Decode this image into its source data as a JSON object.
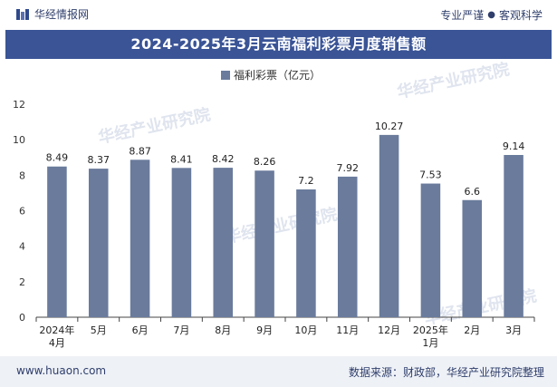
{
  "header": {
    "brand": "华经情报网",
    "tagline_left": "专业严谨",
    "tagline_dot": "●",
    "tagline_right": "客观科学"
  },
  "footer": {
    "site": "www.huaon.com",
    "source": "数据来源：财政部，华经产业研究院整理"
  },
  "watermark_text": "华经产业研究院",
  "colors": {
    "bar": "#6a7b9c",
    "title_bg": "#3a5496",
    "brand": "#2f3e6b"
  },
  "chart_data": {
    "type": "bar",
    "title": "2024-2025年3月云南福利彩票月度销售额",
    "categories": [
      "2024年\n4月",
      "5月",
      "6月",
      "7月",
      "8月",
      "9月",
      "10月",
      "11月",
      "12月",
      "2025年\n1月",
      "2月",
      "3月"
    ],
    "series": [
      {
        "name": "福利彩票（亿元）",
        "values": [
          8.49,
          8.37,
          8.87,
          8.41,
          8.42,
          8.26,
          7.2,
          7.92,
          10.27,
          7.53,
          6.6,
          9.14
        ]
      }
    ],
    "data_labels": [
      "8.49",
      "8.37",
      "8.87",
      "8.41",
      "8.42",
      "8.26",
      "7.2",
      "7.92",
      "10.27",
      "7.53",
      "6.6",
      "9.14"
    ],
    "yticks": [
      0,
      2,
      4,
      6,
      8,
      10,
      12
    ],
    "ylim": [
      0,
      12
    ],
    "grid": false,
    "legend_position": "top-center"
  }
}
